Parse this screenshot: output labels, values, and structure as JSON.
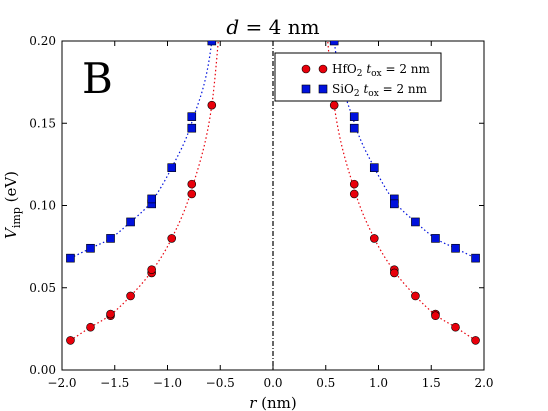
{
  "chart_data": {
    "type": "scatter",
    "title": "d = 4 nm",
    "panel_label": "B",
    "xlabel": "r (nm)",
    "ylabel": "V_imp (eV)",
    "xlim": [
      -2.0,
      2.0
    ],
    "ylim": [
      0.0,
      0.2
    ],
    "x_ticks": [
      -2.0,
      -1.5,
      -1.0,
      -0.5,
      0.0,
      0.5,
      1.0,
      1.5,
      2.0
    ],
    "x_tick_labels": [
      "−2.0",
      "−1.5",
      "−1.0",
      "−0.5",
      "0.0",
      "0.5",
      "1.0",
      "1.5",
      "2.0"
    ],
    "y_ticks": [
      0.0,
      0.05,
      0.1,
      0.15,
      0.2
    ],
    "y_tick_labels": [
      "0.00",
      "0.05",
      "0.10",
      "0.15",
      "0.20"
    ],
    "legend_position": "top-right",
    "series": [
      {
        "name": "HfO2 tox = 2 nm",
        "legend_main": "HfO",
        "legend_sub": "2",
        "legend_rest": " t",
        "legend_sub2": "ox",
        "legend_tail": " = 2 nm",
        "marker": "circle",
        "color": "#e8000b",
        "x": [
          -1.92,
          -1.73,
          -1.54,
          -1.54,
          -1.35,
          -1.15,
          -1.15,
          -0.96,
          -0.77,
          -0.77,
          -0.58,
          0.58,
          0.77,
          0.77,
          0.96,
          1.15,
          1.15,
          1.35,
          1.54,
          1.54,
          1.73,
          1.92
        ],
        "y": [
          0.018,
          0.026,
          0.033,
          0.034,
          0.045,
          0.059,
          0.061,
          0.08,
          0.107,
          0.113,
          0.161,
          0.161,
          0.113,
          0.107,
          0.08,
          0.061,
          0.059,
          0.045,
          0.034,
          0.033,
          0.026,
          0.018
        ]
      },
      {
        "name": "SiO2 tox = 2 nm",
        "legend_main": "SiO",
        "legend_sub": "2",
        "legend_rest": " t",
        "legend_sub2": "ox",
        "legend_tail": " = 2 nm",
        "marker": "square",
        "color": "#0011dd",
        "x": [
          -1.92,
          -1.73,
          -1.54,
          -1.35,
          -1.15,
          -1.15,
          -0.96,
          -0.77,
          -0.77,
          -0.58,
          0.58,
          0.77,
          0.77,
          0.96,
          1.15,
          1.15,
          1.35,
          1.54,
          1.73,
          1.92
        ],
        "y": [
          0.068,
          0.074,
          0.08,
          0.09,
          0.101,
          0.104,
          0.123,
          0.147,
          0.154,
          0.2,
          0.2,
          0.154,
          0.147,
          0.123,
          0.104,
          0.101,
          0.09,
          0.08,
          0.074,
          0.068
        ]
      }
    ],
    "vertical_line_x": 0.0
  }
}
